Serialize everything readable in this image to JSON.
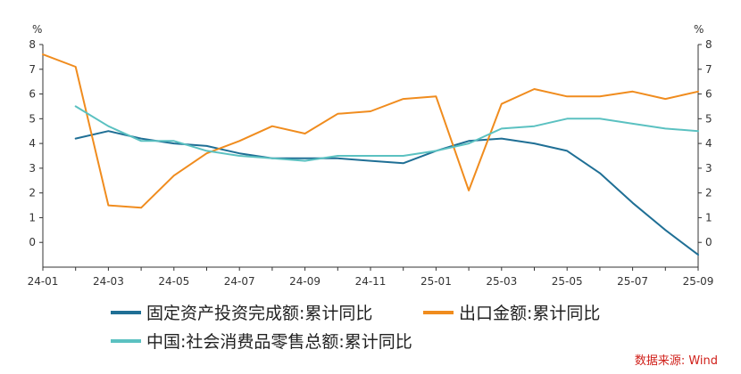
{
  "chart_data": {
    "type": "line",
    "y_unit_left": "%",
    "y_unit_right": "%",
    "ylim": [
      -1,
      8
    ],
    "yticks": [
      0,
      1,
      2,
      3,
      4,
      5,
      6,
      7,
      8
    ],
    "x": [
      "24-01",
      "24-02",
      "24-03",
      "24-04",
      "24-05",
      "24-06",
      "24-07",
      "24-08",
      "24-09",
      "24-10",
      "24-11",
      "24-12",
      "25-01",
      "25-02",
      "25-03",
      "25-04",
      "25-05",
      "25-06",
      "25-07",
      "25-08",
      "25-09"
    ],
    "x_tick_labels": [
      "24-01",
      "24-03",
      "24-05",
      "24-07",
      "24-09",
      "24-11",
      "25-01",
      "25-03",
      "25-05",
      "25-07",
      "25-09"
    ],
    "grid": false,
    "legend_position": "bottom",
    "series": [
      {
        "name": "固定资产投资完成额:累计同比",
        "color": "#1f6f95",
        "values": [
          null,
          4.2,
          4.5,
          4.2,
          4.0,
          3.9,
          3.6,
          3.4,
          3.4,
          3.4,
          3.3,
          3.2,
          3.7,
          4.1,
          4.2,
          4.0,
          3.7,
          2.8,
          1.6,
          0.5,
          -0.5
        ]
      },
      {
        "name": "出口金额:累计同比",
        "color": "#f08c1e",
        "values": [
          7.6,
          7.1,
          1.5,
          1.4,
          2.7,
          3.6,
          4.1,
          4.7,
          4.4,
          5.2,
          5.3,
          5.8,
          5.9,
          2.1,
          5.6,
          6.2,
          5.9,
          5.9,
          6.1,
          5.8,
          6.1
        ]
      },
      {
        "name": "中国:社会消费品零售总额:累计同比",
        "color": "#5bc1c1",
        "values": [
          null,
          5.5,
          4.7,
          4.1,
          4.1,
          3.7,
          3.5,
          3.4,
          3.3,
          3.5,
          3.5,
          3.5,
          3.7,
          4.0,
          4.6,
          4.7,
          5.0,
          5.0,
          4.8,
          4.6,
          4.5
        ]
      }
    ]
  },
  "source_text": "数据来源: Wind"
}
